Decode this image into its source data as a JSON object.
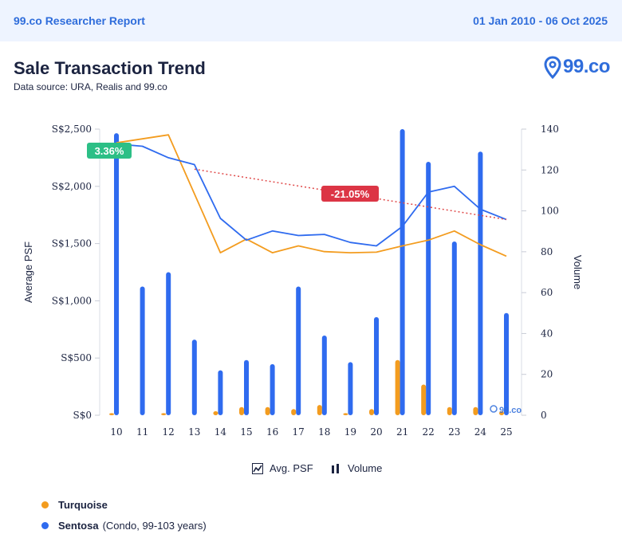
{
  "header": {
    "report_title": "99.co Researcher Report",
    "date_range": "01 Jan 2010 - 06 Oct 2025"
  },
  "title": "Sale Transaction Trend",
  "data_source": "Data source: URA, Realis and 99.co",
  "logo_text": "99.co",
  "watermark_text": "99.co",
  "chart_data": {
    "type": "bar+line",
    "categories": [
      "10",
      "11",
      "12",
      "13",
      "14",
      "15",
      "16",
      "17",
      "18",
      "19",
      "20",
      "21",
      "22",
      "23",
      "24",
      "25"
    ],
    "ylabel_left": "Average PSF",
    "ylabel_right": "Volume",
    "left_axis": {
      "min": 0,
      "max": 2500,
      "ticks": [
        0,
        500,
        1000,
        1500,
        2000,
        2500
      ],
      "tick_labels": [
        "S$0",
        "S$500",
        "S$1,000",
        "S$1,500",
        "S$2,000",
        "S$2,500"
      ]
    },
    "right_axis": {
      "min": 0,
      "max": 140,
      "ticks": [
        0,
        20,
        40,
        60,
        80,
        100,
        120,
        140
      ],
      "tick_labels": [
        "0",
        "20",
        "40",
        "60",
        "80",
        "100",
        "120",
        "140"
      ]
    },
    "series": [
      {
        "name": "Turquoise",
        "color": "#f39c1f",
        "psf": [
          2380,
          null,
          2450,
          null,
          1420,
          1540,
          1420,
          1480,
          1430,
          1420,
          1425,
          1480,
          1530,
          1610,
          1490,
          1390
        ],
        "volume": [
          1,
          0,
          1,
          0,
          2,
          4,
          4,
          3,
          5,
          1,
          3,
          27,
          15,
          4,
          4,
          2
        ]
      },
      {
        "name": "Sentosa",
        "detail": "(Condo, 99-103 years)",
        "color": "#2f6bef",
        "psf": [
          2370,
          2350,
          2250,
          2190,
          1720,
          1530,
          1610,
          1570,
          1580,
          1510,
          1480,
          1650,
          1950,
          2000,
          1800,
          1710
        ],
        "volume": [
          138,
          63,
          70,
          37,
          22,
          27,
          25,
          63,
          39,
          26,
          48,
          140,
          124,
          85,
          129,
          50
        ]
      }
    ],
    "annotations": [
      {
        "label": "3.36%",
        "color": "#2cbf86"
      },
      {
        "label": "-21.05%",
        "color": "#dc3545"
      }
    ],
    "trend_line": {
      "from_category": "13",
      "from_psf": 2150,
      "to_category": "25",
      "to_psf": 1710,
      "color": "#e04b4b"
    }
  },
  "legend": {
    "avg_psf": "Avg. PSF",
    "volume": "Volume"
  },
  "projects": [
    {
      "name": "Turquoise",
      "detail": "",
      "color": "#f39c1f"
    },
    {
      "name": "Sentosa",
      "detail": "(Condo, 99-103 years)",
      "color": "#2f6bef"
    }
  ]
}
